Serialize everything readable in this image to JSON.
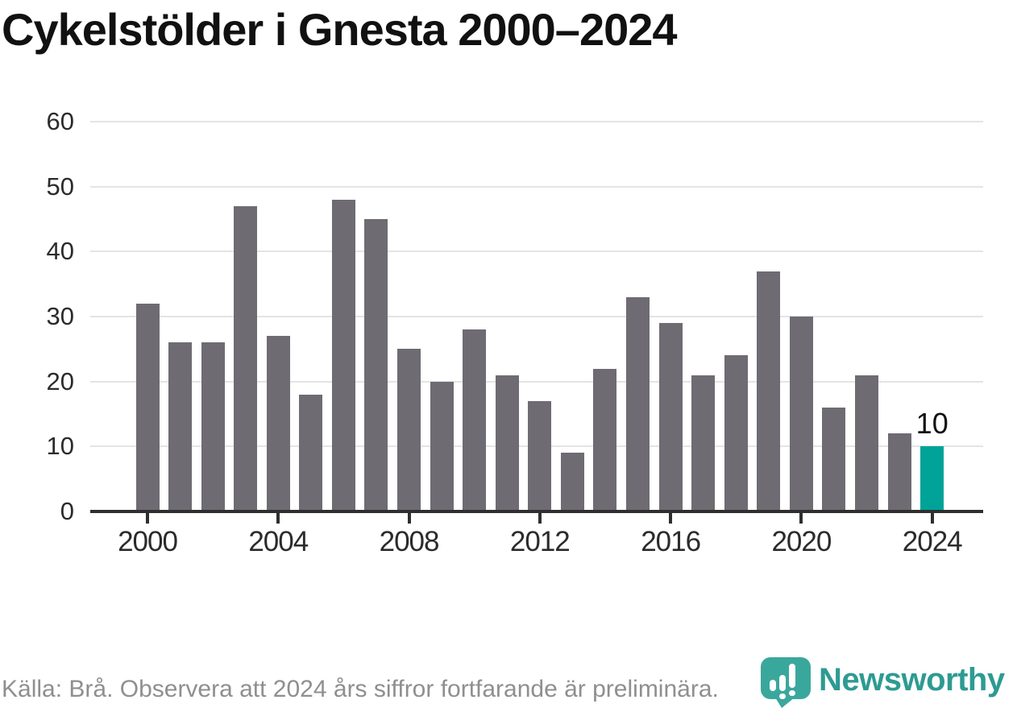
{
  "title": "Cykelstölder i Gnesta 2000–2024",
  "footer": {
    "source_note": "Källa: Brå. Observera att 2024 års siffror fortfarande är preliminära."
  },
  "branding": {
    "logo_text": "Newsworthy",
    "logo_icon": "newsworthy-chart-bubble-icon",
    "logo_color": "#2d9b92",
    "logo_icon_color": "#3aa79d"
  },
  "colors": {
    "bar": "#6e6b73",
    "highlight": "#00a398",
    "gridline": "#e4e4e4",
    "axis": "#2f2f2f",
    "title_text": "#111111",
    "axis_label_text": "#2b2b2b",
    "footer_text": "#8f8f8f",
    "data_label_text": "#111111"
  },
  "chart_data": {
    "type": "bar",
    "title": "Cykelstölder i Gnesta 2000–2024",
    "categories": [
      "2000",
      "2001",
      "2002",
      "2003",
      "2004",
      "2005",
      "2006",
      "2007",
      "2008",
      "2009",
      "2010",
      "2011",
      "2012",
      "2013",
      "2014",
      "2015",
      "2016",
      "2017",
      "2018",
      "2019",
      "2020",
      "2021",
      "2022",
      "2023",
      "2024"
    ],
    "values": [
      32,
      26,
      26,
      47,
      27,
      18,
      48,
      45,
      25,
      20,
      28,
      21,
      17,
      9,
      22,
      33,
      29,
      21,
      24,
      37,
      30,
      16,
      21,
      12,
      10
    ],
    "highlighted_category": "2024",
    "data_labels": [
      {
        "category": "2024",
        "text": "10"
      }
    ],
    "xlabel": "",
    "ylabel": "",
    "xticks": [
      "2000",
      "2004",
      "2008",
      "2012",
      "2016",
      "2020",
      "2024"
    ],
    "yticks": [
      0,
      10,
      20,
      30,
      40,
      50,
      60
    ],
    "ylim": [
      0,
      60
    ],
    "grid": "horizontal",
    "legend": "none"
  }
}
